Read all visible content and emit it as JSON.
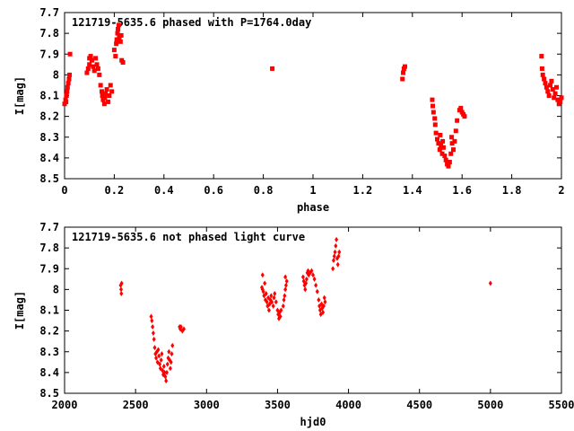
{
  "colors": {
    "points": "#ff0000",
    "frame": "#000000",
    "background": "#ffffff"
  },
  "chart_data": [
    {
      "type": "scatter",
      "title": "121719-5635.6 phased with P=1764.0day",
      "xlabel": "phase",
      "ylabel": "I[mag]",
      "xlim": [
        0,
        2
      ],
      "ylim": [
        7.7,
        8.5
      ],
      "y_inverted": true,
      "marker": "square",
      "xticks": [
        0,
        0.2,
        0.4,
        0.6,
        0.8,
        1,
        1.2,
        1.4,
        1.6,
        1.8,
        2
      ],
      "xtick_labels": [
        "0",
        "0.2",
        "0.4",
        "0.6",
        "0.8",
        "1",
        "1.2",
        "1.4",
        "1.6",
        "1.8",
        "2"
      ],
      "yticks": [
        7.7,
        7.8,
        7.9,
        8,
        8.1,
        8.2,
        8.3,
        8.4,
        8.5
      ],
      "ytick_labels": [
        "7.7",
        "7.8",
        "7.9",
        "8",
        "8.1",
        "8.2",
        "8.3",
        "8.4",
        "8.5"
      ],
      "grid": false,
      "points": [
        [
          0.0,
          8.14
        ],
        [
          0.004,
          8.12
        ],
        [
          0.008,
          8.1
        ],
        [
          0.01,
          8.08
        ],
        [
          0.012,
          8.06
        ],
        [
          0.015,
          8.04
        ],
        [
          0.018,
          8.02
        ],
        [
          0.02,
          8.0
        ],
        [
          0.022,
          7.9
        ],
        [
          0.006,
          8.13
        ],
        [
          0.09,
          7.99
        ],
        [
          0.095,
          7.97
        ],
        [
          0.1,
          7.95
        ],
        [
          0.1,
          7.92
        ],
        [
          0.105,
          7.91
        ],
        [
          0.11,
          7.93
        ],
        [
          0.115,
          7.96
        ],
        [
          0.12,
          7.98
        ],
        [
          0.125,
          7.92
        ],
        [
          0.13,
          7.95
        ],
        [
          0.135,
          7.97
        ],
        [
          0.14,
          8.0
        ],
        [
          0.145,
          8.05
        ],
        [
          0.15,
          8.08
        ],
        [
          0.152,
          8.1
        ],
        [
          0.155,
          8.12
        ],
        [
          0.16,
          8.14
        ],
        [
          0.162,
          8.11
        ],
        [
          0.165,
          8.09
        ],
        [
          0.17,
          8.07
        ],
        [
          0.175,
          8.13
        ],
        [
          0.18,
          8.1
        ],
        [
          0.185,
          8.05
        ],
        [
          0.19,
          8.08
        ],
        [
          0.2,
          7.88
        ],
        [
          0.205,
          7.91
        ],
        [
          0.208,
          7.85
        ],
        [
          0.21,
          7.83
        ],
        [
          0.213,
          7.8
        ],
        [
          0.215,
          7.78
        ],
        [
          0.218,
          7.76
        ],
        [
          0.22,
          7.82
        ],
        [
          0.225,
          7.84
        ],
        [
          0.228,
          7.81
        ],
        [
          0.23,
          7.93
        ],
        [
          0.235,
          7.94
        ],
        [
          0.836,
          7.97
        ],
        [
          1.36,
          8.02
        ],
        [
          1.363,
          7.99
        ],
        [
          1.366,
          7.97
        ],
        [
          1.37,
          7.96
        ],
        [
          1.48,
          8.12
        ],
        [
          1.482,
          8.15
        ],
        [
          1.485,
          8.18
        ],
        [
          1.49,
          8.21
        ],
        [
          1.492,
          8.24
        ],
        [
          1.495,
          8.28
        ],
        [
          1.5,
          8.31
        ],
        [
          1.505,
          8.33
        ],
        [
          1.51,
          8.36
        ],
        [
          1.512,
          8.29
        ],
        [
          1.515,
          8.34
        ],
        [
          1.52,
          8.38
        ],
        [
          1.522,
          8.32
        ],
        [
          1.525,
          8.35
        ],
        [
          1.53,
          8.39
        ],
        [
          1.535,
          8.41
        ],
        [
          1.54,
          8.43
        ],
        [
          1.545,
          8.44
        ],
        [
          1.55,
          8.42
        ],
        [
          1.555,
          8.38
        ],
        [
          1.558,
          8.3
        ],
        [
          1.56,
          8.33
        ],
        [
          1.565,
          8.36
        ],
        [
          1.57,
          8.32
        ],
        [
          1.575,
          8.27
        ],
        [
          1.58,
          8.22
        ],
        [
          1.59,
          8.17
        ],
        [
          1.595,
          8.16
        ],
        [
          1.6,
          8.18
        ],
        [
          1.605,
          8.19
        ],
        [
          1.61,
          8.2
        ],
        [
          1.92,
          7.91
        ],
        [
          1.922,
          7.97
        ],
        [
          1.925,
          8.0
        ],
        [
          1.93,
          8.02
        ],
        [
          1.935,
          8.04
        ],
        [
          1.94,
          8.06
        ],
        [
          1.945,
          8.08
        ],
        [
          1.95,
          8.1
        ],
        [
          1.955,
          8.05
        ],
        [
          1.96,
          8.03
        ],
        [
          1.965,
          8.07
        ],
        [
          1.97,
          8.11
        ],
        [
          1.975,
          8.09
        ],
        [
          1.98,
          8.06
        ],
        [
          1.985,
          8.12
        ],
        [
          1.99,
          8.14
        ],
        [
          1.995,
          8.13
        ],
        [
          2.0,
          8.11
        ]
      ]
    },
    {
      "type": "scatter",
      "title": "121719-5635.6 not phased light curve",
      "xlabel": "hjd0",
      "ylabel": "I[mag]",
      "xlim": [
        2000,
        5500
      ],
      "ylim": [
        7.7,
        8.5
      ],
      "y_inverted": true,
      "marker": "diamond",
      "xticks": [
        2000,
        2500,
        3000,
        3500,
        4000,
        4500,
        5000,
        5500
      ],
      "xtick_labels": [
        "2000",
        "2500",
        "3000",
        "3500",
        "4000",
        "4500",
        "5000",
        "5500"
      ],
      "yticks": [
        7.7,
        7.8,
        7.9,
        8,
        8.1,
        8.2,
        8.3,
        8.4,
        8.5
      ],
      "ytick_labels": [
        "7.7",
        "7.8",
        "7.9",
        "8",
        "8.1",
        "8.2",
        "8.3",
        "8.4",
        "8.5"
      ],
      "grid": false,
      "points": [
        [
          2395,
          7.98
        ],
        [
          2398,
          8.0
        ],
        [
          2400,
          8.02
        ],
        [
          2402,
          7.97
        ],
        [
          2610,
          8.13
        ],
        [
          2615,
          8.15
        ],
        [
          2620,
          8.18
        ],
        [
          2625,
          8.21
        ],
        [
          2630,
          8.24
        ],
        [
          2635,
          8.28
        ],
        [
          2640,
          8.31
        ],
        [
          2645,
          8.33
        ],
        [
          2650,
          8.3
        ],
        [
          2655,
          8.35
        ],
        [
          2660,
          8.29
        ],
        [
          2665,
          8.32
        ],
        [
          2670,
          8.36
        ],
        [
          2675,
          8.38
        ],
        [
          2680,
          8.34
        ],
        [
          2685,
          8.31
        ],
        [
          2690,
          8.39
        ],
        [
          2695,
          8.41
        ],
        [
          2700,
          8.37
        ],
        [
          2705,
          8.4
        ],
        [
          2710,
          8.42
        ],
        [
          2715,
          8.44
        ],
        [
          2720,
          8.4
        ],
        [
          2725,
          8.36
        ],
        [
          2730,
          8.33
        ],
        [
          2735,
          8.3
        ],
        [
          2740,
          8.34
        ],
        [
          2745,
          8.38
        ],
        [
          2750,
          8.35
        ],
        [
          2755,
          8.31
        ],
        [
          2760,
          8.27
        ],
        [
          2810,
          8.18
        ],
        [
          2815,
          8.19
        ],
        [
          2820,
          8.18
        ],
        [
          2830,
          8.2
        ],
        [
          2840,
          8.19
        ],
        [
          3390,
          7.99
        ],
        [
          3395,
          8.0
        ],
        [
          3400,
          8.01
        ],
        [
          3405,
          8.03
        ],
        [
          3410,
          7.97
        ],
        [
          3415,
          8.05
        ],
        [
          3420,
          8.02
        ],
        [
          3425,
          8.06
        ],
        [
          3430,
          8.08
        ],
        [
          3435,
          8.04
        ],
        [
          3440,
          8.1
        ],
        [
          3445,
          8.07
        ],
        [
          3450,
          8.05
        ],
        [
          3455,
          8.03
        ],
        [
          3460,
          8.06
        ],
        [
          3470,
          8.08
        ],
        [
          3475,
          8.04
        ],
        [
          3480,
          8.02
        ],
        [
          3490,
          8.06
        ],
        [
          3500,
          8.1
        ],
        [
          3505,
          8.12
        ],
        [
          3510,
          8.14
        ],
        [
          3515,
          8.11
        ],
        [
          3520,
          8.13
        ],
        [
          3525,
          8.1
        ],
        [
          3540,
          8.08
        ],
        [
          3545,
          8.05
        ],
        [
          3550,
          8.03
        ],
        [
          3555,
          8.0
        ],
        [
          3560,
          7.98
        ],
        [
          3565,
          7.96
        ],
        [
          3395,
          7.93
        ],
        [
          3555,
          7.94
        ],
        [
          3680,
          7.94
        ],
        [
          3685,
          7.96
        ],
        [
          3690,
          7.98
        ],
        [
          3695,
          8.0
        ],
        [
          3700,
          7.97
        ],
        [
          3705,
          7.95
        ],
        [
          3710,
          7.92
        ],
        [
          3715,
          7.91
        ],
        [
          3720,
          7.93
        ],
        [
          3730,
          7.92
        ],
        [
          3740,
          7.91
        ],
        [
          3750,
          7.93
        ],
        [
          3760,
          7.95
        ],
        [
          3770,
          7.98
        ],
        [
          3780,
          8.01
        ],
        [
          3790,
          8.05
        ],
        [
          3795,
          8.08
        ],
        [
          3800,
          8.1
        ],
        [
          3805,
          8.12
        ],
        [
          3810,
          8.07
        ],
        [
          3815,
          8.09
        ],
        [
          3820,
          8.11
        ],
        [
          3825,
          8.08
        ],
        [
          3830,
          8.04
        ],
        [
          3835,
          8.06
        ],
        [
          3890,
          7.9
        ],
        [
          3895,
          7.86
        ],
        [
          3900,
          7.84
        ],
        [
          3905,
          7.82
        ],
        [
          3910,
          7.79
        ],
        [
          3915,
          7.76
        ],
        [
          3920,
          7.85
        ],
        [
          3925,
          7.88
        ],
        [
          3930,
          7.84
        ],
        [
          3935,
          7.82
        ],
        [
          5000,
          7.97
        ]
      ]
    }
  ]
}
